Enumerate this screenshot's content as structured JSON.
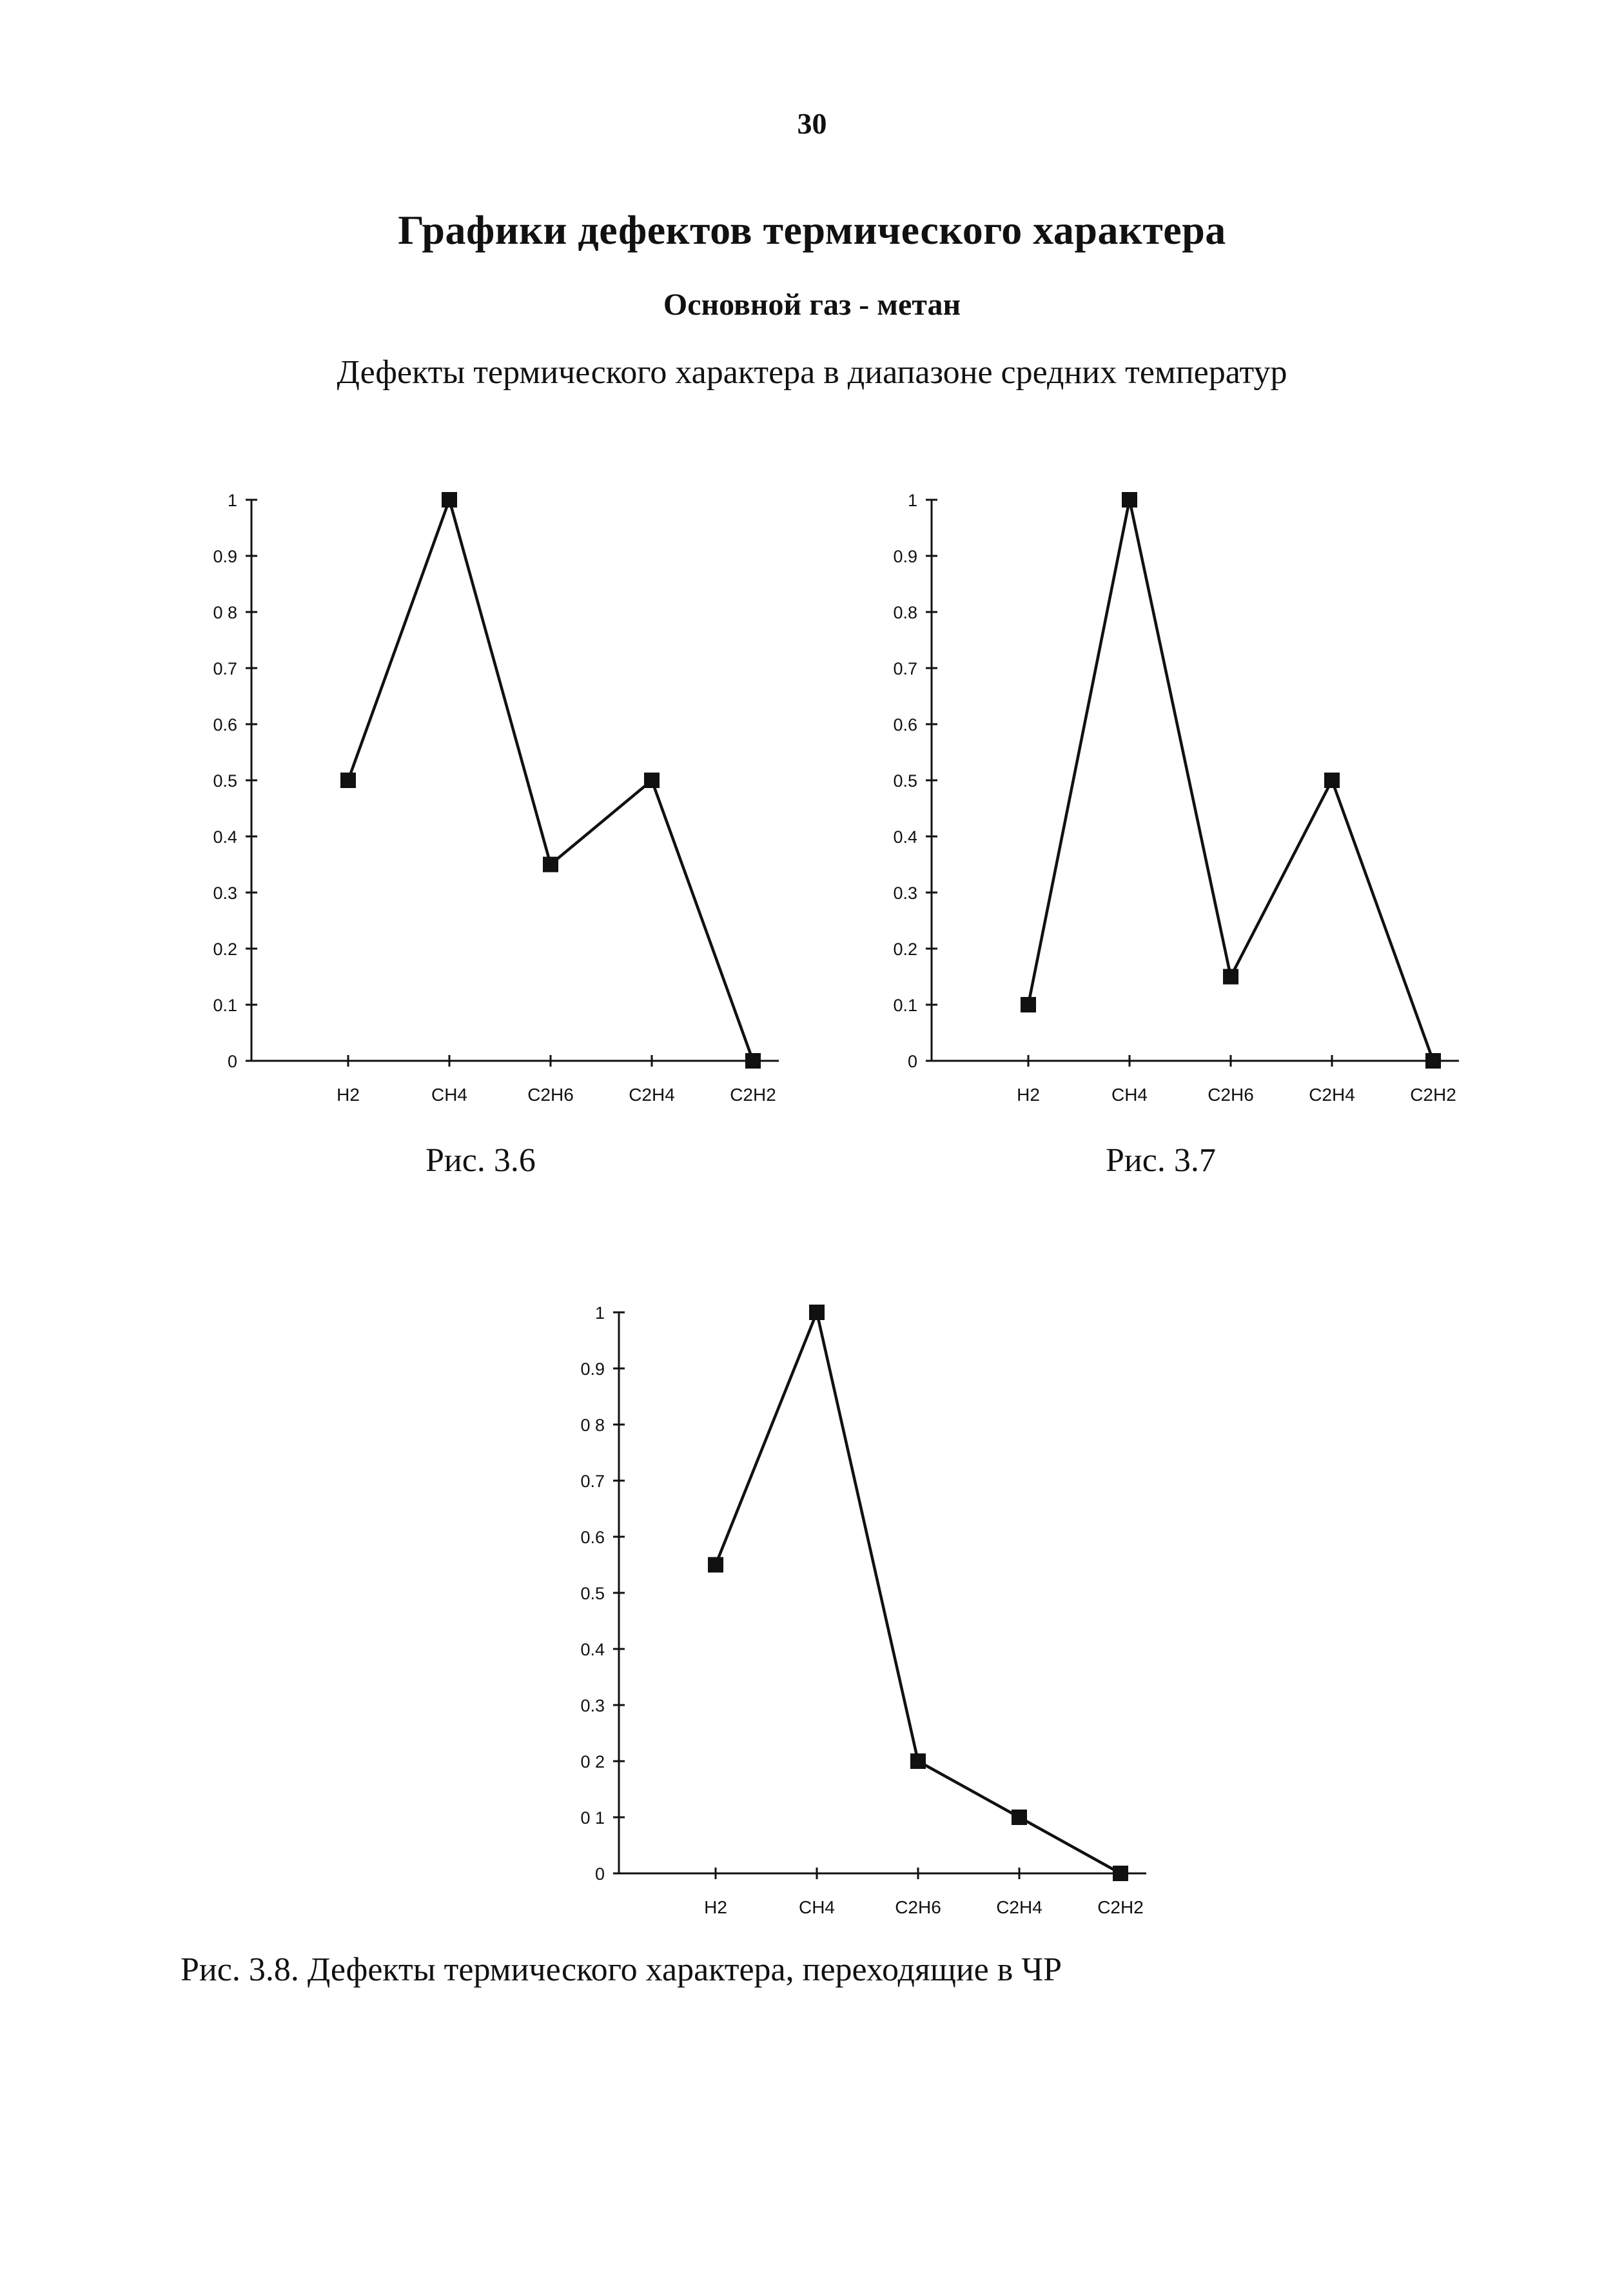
{
  "page": {
    "number": "30",
    "title": "Графики дефектов термического характера",
    "subtitle": "Основной газ - метан",
    "section_title": "Дефекты термического характера в диапазоне средних температур"
  },
  "captions": {
    "fig36": "Рис. 3.6",
    "fig37": "Рис. 3.7",
    "fig38": "Рис. 3.8. Дефекты термического характера, переходящие в ЧР"
  },
  "chart_data": [
    {
      "id": "fig36",
      "type": "line",
      "categories": [
        "H2",
        "CH4",
        "C2H6",
        "C2H4",
        "C2H2"
      ],
      "series": [
        {
          "values": [
            0.5,
            1.0,
            0.35,
            0.5,
            0.0
          ]
        }
      ],
      "ylim": [
        0,
        1
      ],
      "yticks": [
        "0",
        "0.1",
        "0.2",
        "0.3",
        "0.4",
        "0.5",
        "0.6",
        "0.7",
        "0 8",
        "0.9",
        "1"
      ],
      "marker": "square",
      "grid": false
    },
    {
      "id": "fig37",
      "type": "line",
      "categories": [
        "H2",
        "CH4",
        "C2H6",
        "C2H4",
        "C2H2"
      ],
      "series": [
        {
          "values": [
            0.1,
            1.0,
            0.15,
            0.5,
            0.0
          ]
        }
      ],
      "ylim": [
        0,
        1
      ],
      "yticks": [
        "0",
        "0.1",
        "0.2",
        "0.3",
        "0.4",
        "0.5",
        "0.6",
        "0.7",
        "0.8",
        "0.9",
        "1"
      ],
      "marker": "square",
      "grid": false
    },
    {
      "id": "fig38",
      "type": "line",
      "categories": [
        "H2",
        "CH4",
        "C2H6",
        "C2H4",
        "C2H2"
      ],
      "series": [
        {
          "values": [
            0.55,
            1.0,
            0.2,
            0.1,
            0.0
          ]
        }
      ],
      "ylim": [
        0,
        1
      ],
      "yticks": [
        "0",
        "0 1",
        "0 2",
        "0.3",
        "0.4",
        "0.5",
        "0.6",
        "0.7",
        "0 8",
        "0.9",
        "1"
      ],
      "marker": "square",
      "grid": false
    }
  ]
}
